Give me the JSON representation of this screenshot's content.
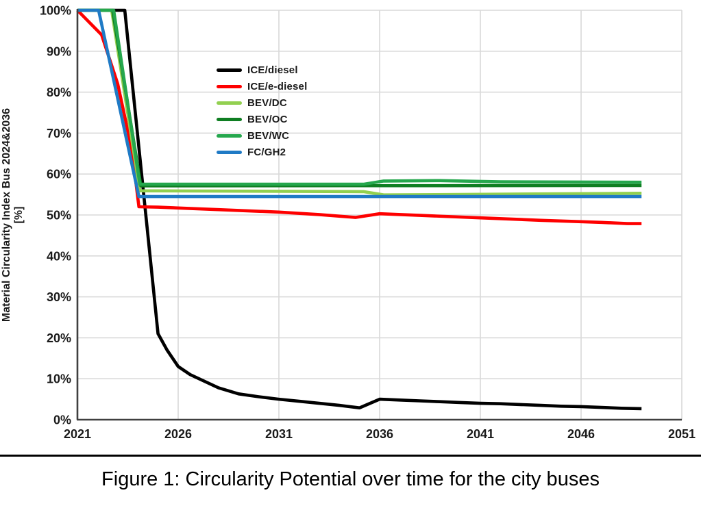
{
  "figure": {
    "caption": "Figure 1: Circularity Potential over time for the city buses"
  },
  "colors": {
    "grid": "#d9d9d9",
    "axis": "#3f3f3f",
    "tick_text": "#1a1a1a",
    "background": "#ffffff"
  },
  "chart_data": {
    "type": "line",
    "title": "",
    "xlabel": "",
    "ylabel_line1": "Material Circularity Index Bus 2024&2036",
    "ylabel_line2": "[%]",
    "xlim": [
      2021,
      2051
    ],
    "ylim": [
      0,
      100
    ],
    "x_ticks": [
      2021,
      2026,
      2031,
      2036,
      2041,
      2046,
      2051
    ],
    "y_ticks": [
      0,
      10,
      20,
      30,
      40,
      50,
      60,
      70,
      80,
      90,
      100
    ],
    "y_tick_suffix": "%",
    "grid": true,
    "legend_position": "inside upper-left-center",
    "series": [
      {
        "name": "ICE/diesel",
        "color": "#000000",
        "points": [
          [
            2021,
            100
          ],
          [
            2023.35,
            100
          ],
          [
            2025.0,
            21
          ],
          [
            2025.45,
            17
          ],
          [
            2026.0,
            13
          ],
          [
            2026.6,
            11
          ],
          [
            2027.3,
            9.4
          ],
          [
            2028,
            7.8
          ],
          [
            2029,
            6.3
          ],
          [
            2030,
            5.6
          ],
          [
            2031,
            5.0
          ],
          [
            2032,
            4.5
          ],
          [
            2033,
            4.0
          ],
          [
            2034,
            3.5
          ],
          [
            2035,
            2.9
          ],
          [
            2036,
            5.0
          ],
          [
            2037,
            4.8
          ],
          [
            2038,
            4.6
          ],
          [
            2039,
            4.4
          ],
          [
            2040,
            4.2
          ],
          [
            2041,
            4.0
          ],
          [
            2042,
            3.9
          ],
          [
            2043,
            3.7
          ],
          [
            2044,
            3.5
          ],
          [
            2045,
            3.3
          ],
          [
            2046,
            3.2
          ],
          [
            2047,
            3.0
          ],
          [
            2048,
            2.8
          ],
          [
            2049,
            2.7
          ]
        ]
      },
      {
        "name": "ICE/e-diesel",
        "color": "#fe0000",
        "points": [
          [
            2021,
            100
          ],
          [
            2021.6,
            97
          ],
          [
            2022.2,
            94
          ],
          [
            2023.0,
            82
          ],
          [
            2023.7,
            66
          ],
          [
            2024.05,
            52
          ],
          [
            2025,
            51.9
          ],
          [
            2028,
            51.3
          ],
          [
            2031,
            50.7
          ],
          [
            2033,
            50.1
          ],
          [
            2034.8,
            49.4
          ],
          [
            2036,
            50.3
          ],
          [
            2038,
            49.9
          ],
          [
            2041,
            49.3
          ],
          [
            2044,
            48.7
          ],
          [
            2047,
            48.2
          ],
          [
            2048.3,
            47.9
          ],
          [
            2049,
            47.9
          ]
        ]
      },
      {
        "name": "BEV/DC",
        "color": "#92d050",
        "points": [
          [
            2021,
            100
          ],
          [
            2022.7,
            100
          ],
          [
            2024.1,
            55.9
          ],
          [
            2035.2,
            55.7
          ],
          [
            2036.2,
            54.9
          ],
          [
            2040,
            55.0
          ],
          [
            2049,
            55.3
          ]
        ]
      },
      {
        "name": "BEV/OC",
        "color": "#0f7e22",
        "points": [
          [
            2021,
            100
          ],
          [
            2022.75,
            100
          ],
          [
            2024.15,
            57.1
          ],
          [
            2049,
            57.2
          ]
        ]
      },
      {
        "name": "BEV/WC",
        "color": "#25a74d",
        "points": [
          [
            2021,
            100
          ],
          [
            2022.8,
            100
          ],
          [
            2024.1,
            57.5
          ],
          [
            2035.2,
            57.5
          ],
          [
            2036.2,
            58.3
          ],
          [
            2039,
            58.4
          ],
          [
            2042,
            58.1
          ],
          [
            2049,
            58.0
          ]
        ]
      },
      {
        "name": "FC/GH2",
        "color": "#1f7ac5",
        "points": [
          [
            2021,
            100
          ],
          [
            2022.05,
            100
          ],
          [
            2024.05,
            54.5
          ],
          [
            2049,
            54.5
          ]
        ]
      }
    ]
  }
}
